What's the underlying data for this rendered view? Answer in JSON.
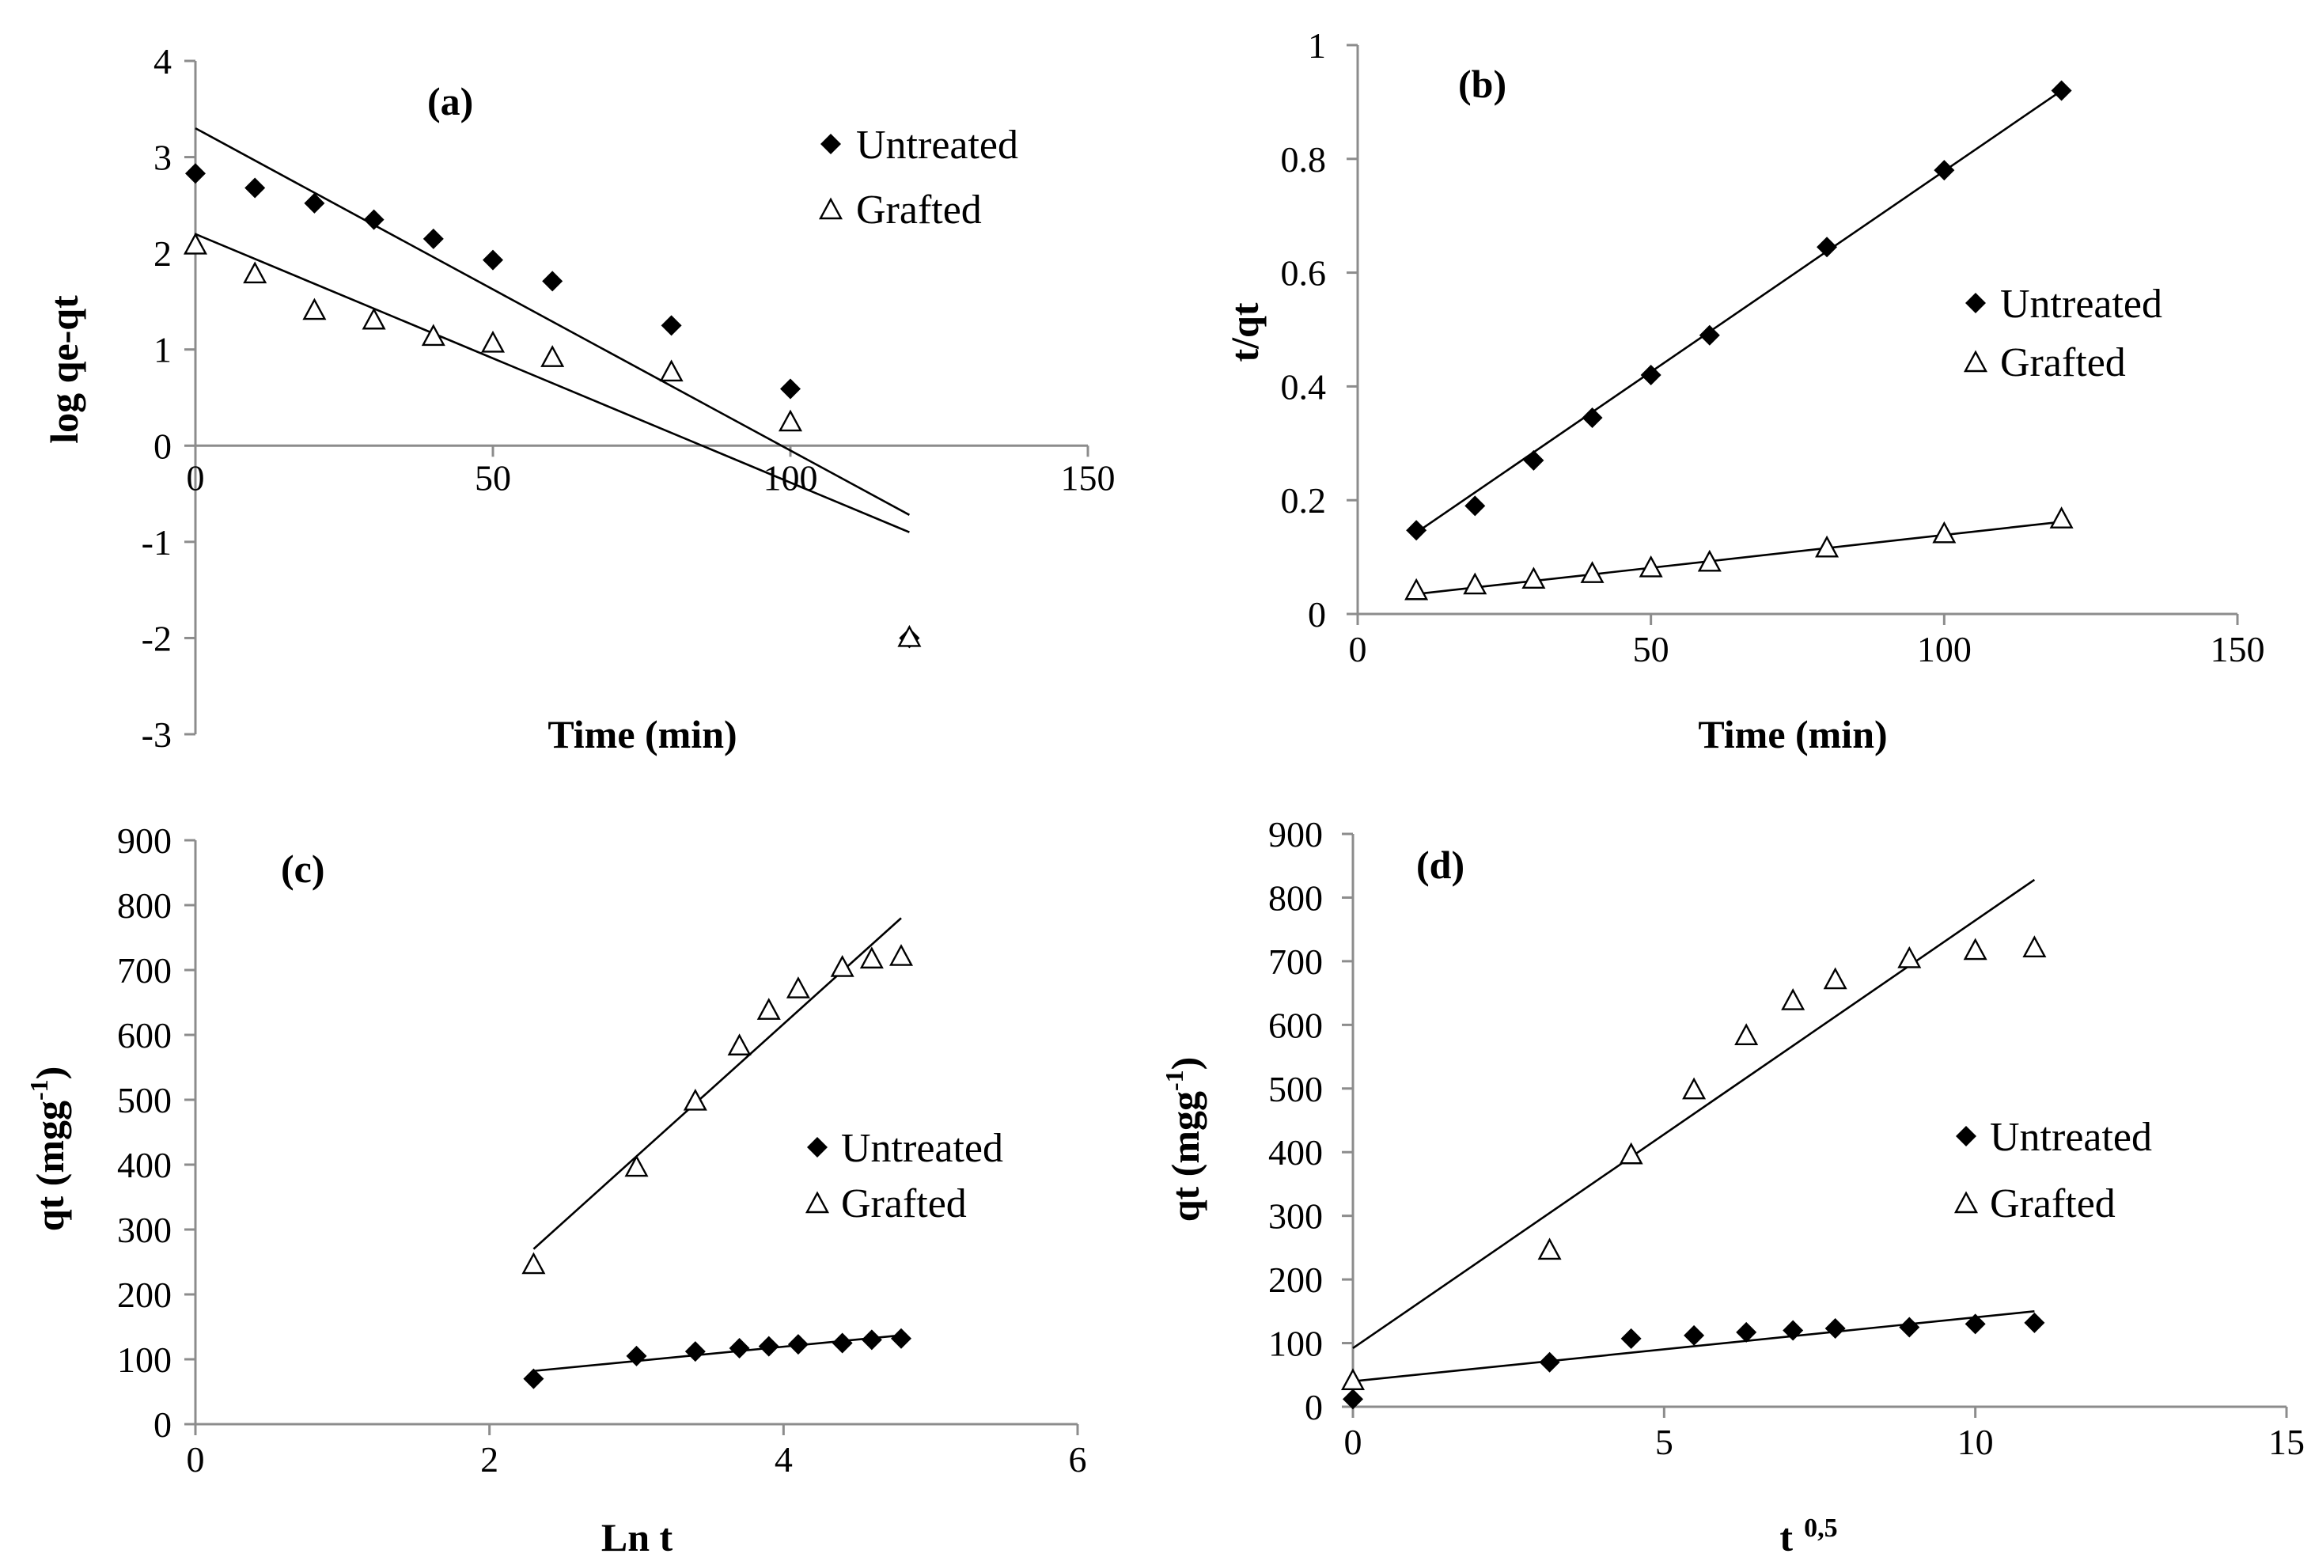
{
  "chart_data": [
    {
      "type": "scatter",
      "panel_label": "(a)",
      "xlabel": "Time (min)",
      "ylabel": "log qe-qt",
      "xlim": [
        0,
        150
      ],
      "ylim": [
        -3,
        4
      ],
      "xticks": [
        0,
        50,
        100,
        150
      ],
      "yticks": [
        -3,
        -2,
        -1,
        0,
        1,
        2,
        3,
        4
      ],
      "xtick_labels": [
        "0",
        "50",
        "100",
        "150"
      ],
      "ytick_labels": [
        "-3",
        "-2",
        "-1",
        "0",
        "1",
        "2",
        "3",
        "4"
      ],
      "legend_position": "top-right",
      "series": [
        {
          "name": "Untreated",
          "marker": "diamond",
          "x": [
            0,
            10,
            20,
            30,
            40,
            50,
            60,
            80,
            100,
            120
          ],
          "y": [
            2.83,
            2.68,
            2.52,
            2.35,
            2.15,
            1.93,
            1.71,
            1.25,
            0.59,
            -2.0
          ],
          "fit": {
            "x": [
              0,
              120
            ],
            "y": [
              3.3,
              -0.72
            ]
          }
        },
        {
          "name": "Grafted",
          "marker": "triangle",
          "x": [
            0,
            10,
            20,
            30,
            40,
            50,
            60,
            80,
            100,
            120
          ],
          "y": [
            2.08,
            1.78,
            1.4,
            1.3,
            1.13,
            1.06,
            0.91,
            0.76,
            0.24,
            -2.0
          ],
          "fit": {
            "x": [
              0,
              120
            ],
            "y": [
              2.2,
              -0.9
            ]
          }
        }
      ]
    },
    {
      "type": "scatter",
      "panel_label": "(b)",
      "xlabel": "Time (min)",
      "ylabel": "t/qt",
      "xlim": [
        0,
        150
      ],
      "ylim": [
        0,
        1
      ],
      "xticks": [
        0,
        50,
        100,
        150
      ],
      "yticks": [
        0,
        0.2,
        0.4,
        0.6,
        0.8,
        1
      ],
      "xtick_labels": [
        "0",
        "50",
        "100",
        "150"
      ],
      "ytick_labels": [
        "0",
        "0.2",
        "0.4",
        "0.6",
        "0.8",
        "1"
      ],
      "legend_position": "middle-right",
      "series": [
        {
          "name": "Untreated",
          "marker": "diamond",
          "x": [
            10,
            20,
            30,
            40,
            50,
            60,
            80,
            100,
            120
          ],
          "y": [
            0.147,
            0.19,
            0.27,
            0.345,
            0.42,
            0.49,
            0.645,
            0.78,
            0.92
          ],
          "fit": {
            "x": [
              10,
              120
            ],
            "y": [
              0.143,
              0.92
            ]
          }
        },
        {
          "name": "Grafted",
          "marker": "triangle",
          "x": [
            10,
            20,
            30,
            40,
            50,
            60,
            80,
            100,
            120
          ],
          "y": [
            0.04,
            0.05,
            0.06,
            0.07,
            0.08,
            0.09,
            0.115,
            0.14,
            0.166
          ],
          "fit": {
            "x": [
              10,
              120
            ],
            "y": [
              0.035,
              0.162
            ]
          }
        }
      ]
    },
    {
      "type": "scatter",
      "panel_label": "(c)",
      "xlabel": "Ln t",
      "ylabel": "qt (mgg",
      "ylabel_superscript": "-1",
      "ylabel_suffix": ")",
      "xlim": [
        0,
        6
      ],
      "ylim": [
        0,
        900
      ],
      "xticks": [
        0,
        2,
        4,
        6
      ],
      "yticks": [
        0,
        100,
        200,
        300,
        400,
        500,
        600,
        700,
        800,
        900
      ],
      "xtick_labels": [
        "0",
        "2",
        "4",
        "6"
      ],
      "ytick_labels": [
        "0",
        "100",
        "200",
        "300",
        "400",
        "500",
        "600",
        "700",
        "800",
        "900"
      ],
      "legend_position": "middle-right",
      "series": [
        {
          "name": "Untreated",
          "marker": "diamond",
          "x": [
            2.3,
            3.0,
            3.4,
            3.7,
            3.9,
            4.1,
            4.4,
            4.6,
            4.8
          ],
          "y": [
            70,
            105,
            112,
            117,
            120,
            123,
            125,
            130,
            132
          ],
          "fit": {
            "x": [
              2.3,
              4.8
            ],
            "y": [
              82,
              137
            ]
          }
        },
        {
          "name": "Grafted",
          "marker": "triangle",
          "x": [
            2.3,
            3.0,
            3.4,
            3.7,
            3.9,
            4.1,
            4.4,
            4.6,
            4.8
          ],
          "y": [
            245,
            395,
            497,
            582,
            637,
            670,
            703,
            716,
            720
          ],
          "fit": {
            "x": [
              2.3,
              4.8
            ],
            "y": [
              270,
              780
            ]
          }
        }
      ]
    },
    {
      "type": "scatter",
      "panel_label": "(d)",
      "xlabel": "t",
      "xlabel_superscript": "0,5",
      "ylabel": "qt (mgg",
      "ylabel_superscript": "-1",
      "ylabel_suffix": ")",
      "xlim": [
        0,
        15
      ],
      "ylim": [
        0,
        900
      ],
      "xticks": [
        0,
        5,
        10,
        15
      ],
      "yticks": [
        0,
        100,
        200,
        300,
        400,
        500,
        600,
        700,
        800,
        900
      ],
      "xtick_labels": [
        "0",
        "5",
        "10",
        "15"
      ],
      "ytick_labels": [
        "0",
        "100",
        "200",
        "300",
        "400",
        "500",
        "600",
        "700",
        "800",
        "900"
      ],
      "legend_position": "middle-right",
      "series": [
        {
          "name": "Untreated",
          "marker": "diamond",
          "x": [
            0,
            3.16,
            4.47,
            5.48,
            6.32,
            7.07,
            7.75,
            8.94,
            10,
            10.95
          ],
          "y": [
            12,
            70,
            107,
            112,
            117,
            120,
            123,
            125,
            130,
            132
          ],
          "fit": {
            "x": [
              0,
              10.95
            ],
            "y": [
              40,
              150
            ]
          }
        },
        {
          "name": "Grafted",
          "marker": "triangle",
          "x": [
            0,
            3.16,
            4.47,
            5.48,
            6.32,
            7.07,
            7.75,
            8.94,
            10,
            10.95
          ],
          "y": [
            40,
            245,
            395,
            497,
            582,
            637,
            670,
            703,
            716,
            720
          ],
          "fit": {
            "x": [
              0,
              10.95
            ],
            "y": [
              92,
              828
            ]
          }
        }
      ]
    }
  ]
}
